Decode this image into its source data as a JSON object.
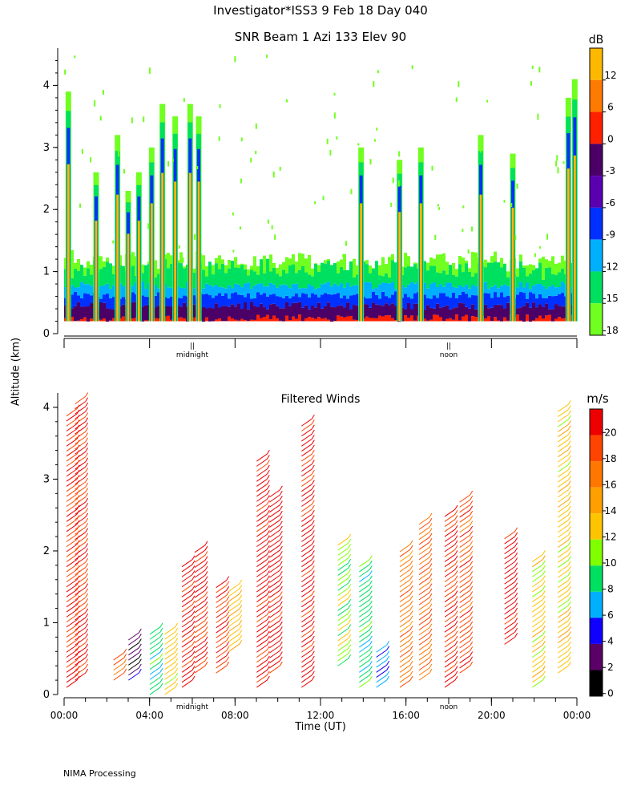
{
  "header": {
    "title": "Investigator*ISS3   9 Feb 18 Day 040",
    "snr_title": "SNR Beam 1 Azi 133 Elev 90"
  },
  "ylabel": "Altitude (km)",
  "footer": "NIMA Processing",
  "chart_data": [
    {
      "type": "heatmap",
      "title": "SNR Beam 1 Azi 133 Elev 90",
      "ylabel": "Altitude (km)",
      "ylim": [
        0,
        4.6
      ],
      "yticks": [
        0,
        1,
        2,
        3,
        4
      ],
      "xlim_hours": [
        0,
        24
      ],
      "markers": [
        {
          "label": "midnight",
          "glyph": "||",
          "hour": 6
        },
        {
          "label": "noon",
          "glyph": "||",
          "hour": 18
        }
      ],
      "colorbar": {
        "unit": "dB",
        "labels": [
          "12",
          "6",
          "0",
          "-3",
          "-6",
          "-9",
          "-12",
          "-15",
          "-18"
        ],
        "colors": [
          "#ffb800",
          "#ff7a00",
          "#ff2000",
          "#4a0066",
          "#5a00b0",
          "#0030ff",
          "#00b0ff",
          "#00e060",
          "#70ff20"
        ]
      },
      "columns": [
        {
          "h": 0.2,
          "top": 3.9
        },
        {
          "h": 1.5,
          "top": 2.6
        },
        {
          "h": 2.5,
          "top": 3.2
        },
        {
          "h": 3.0,
          "top": 2.3
        },
        {
          "h": 3.5,
          "top": 2.6
        },
        {
          "h": 4.1,
          "top": 3.0
        },
        {
          "h": 4.6,
          "top": 3.7
        },
        {
          "h": 5.2,
          "top": 3.5
        },
        {
          "h": 5.9,
          "top": 3.7
        },
        {
          "h": 6.3,
          "top": 3.5
        },
        {
          "h": 13.9,
          "top": 3.0
        },
        {
          "h": 15.7,
          "top": 2.8
        },
        {
          "h": 16.7,
          "top": 3.0
        },
        {
          "h": 19.5,
          "top": 3.2
        },
        {
          "h": 21.0,
          "top": 2.9
        },
        {
          "h": 23.6,
          "top": 3.8
        },
        {
          "h": 23.9,
          "top": 4.1
        }
      ]
    },
    {
      "type": "scatter",
      "title": "Filtered Winds",
      "xlabel": "Time (UT)",
      "ylabel": "Altitude (km)",
      "ylim": [
        0,
        4.2
      ],
      "yticks": [
        0,
        1,
        2,
        3,
        4
      ],
      "xlim_hours": [
        0,
        24
      ],
      "xticks": [
        "00:00",
        "04:00",
        "08:00",
        "12:00",
        "16:00",
        "20:00",
        "00:00"
      ],
      "markers": [
        {
          "label": "midnight",
          "hour": 6
        },
        {
          "label": "noon",
          "hour": 18
        }
      ],
      "colorbar": {
        "unit": "m/s",
        "labels": [
          "20",
          "18",
          "16",
          "14",
          "12",
          "10",
          "8",
          "6",
          "4",
          "2",
          "0"
        ],
        "colors": [
          "#ee0000",
          "#ff4400",
          "#ff7700",
          "#ffa000",
          "#ffc400",
          "#80ff00",
          "#00e060",
          "#00b0ff",
          "#1000ff",
          "#5a0066",
          "#000000"
        ]
      },
      "profiles": [
        {
          "h": 0.6,
          "lo": 0.2,
          "hi": 4.0,
          "spd": 19
        },
        {
          "h": 1.0,
          "lo": 0.3,
          "hi": 4.2,
          "spd": 19
        },
        {
          "h": 2.8,
          "lo": 0.3,
          "hi": 0.6,
          "spd": 18
        },
        {
          "h": 3.5,
          "lo": 0.3,
          "hi": 0.9,
          "spd": 2
        },
        {
          "h": 4.5,
          "lo": 0.1,
          "hi": 1.0,
          "spd": 8
        },
        {
          "h": 5.2,
          "lo": 0.1,
          "hi": 1.0,
          "spd": 12
        },
        {
          "h": 6.0,
          "lo": 0.2,
          "hi": 1.9,
          "spd": 20
        },
        {
          "h": 6.6,
          "lo": 0.4,
          "hi": 2.1,
          "spd": 20
        },
        {
          "h": 7.6,
          "lo": 0.4,
          "hi": 1.6,
          "spd": 19
        },
        {
          "h": 8.2,
          "lo": 0.7,
          "hi": 1.6,
          "spd": 13
        },
        {
          "h": 9.5,
          "lo": 0.2,
          "hi": 3.4,
          "spd": 20
        },
        {
          "h": 10.1,
          "lo": 0.4,
          "hi": 2.9,
          "spd": 20
        },
        {
          "h": 11.6,
          "lo": 0.2,
          "hi": 3.9,
          "spd": 20
        },
        {
          "h": 13.3,
          "lo": 0.5,
          "hi": 2.2,
          "spd": 10
        },
        {
          "h": 14.3,
          "lo": 0.2,
          "hi": 1.9,
          "spd": 8
        },
        {
          "h": 15.1,
          "lo": 0.2,
          "hi": 0.7,
          "spd": 6
        },
        {
          "h": 16.2,
          "lo": 0.2,
          "hi": 2.1,
          "spd": 16
        },
        {
          "h": 17.1,
          "lo": 0.3,
          "hi": 2.5,
          "spd": 17
        },
        {
          "h": 18.3,
          "lo": 0.2,
          "hi": 2.6,
          "spd": 19
        },
        {
          "h": 19.0,
          "lo": 0.4,
          "hi": 2.8,
          "spd": 18
        },
        {
          "h": 21.1,
          "lo": 0.8,
          "hi": 2.3,
          "spd": 20
        },
        {
          "h": 22.4,
          "lo": 0.2,
          "hi": 2.0,
          "spd": 12
        },
        {
          "h": 23.6,
          "lo": 0.4,
          "hi": 4.1,
          "spd": 12
        }
      ]
    }
  ]
}
